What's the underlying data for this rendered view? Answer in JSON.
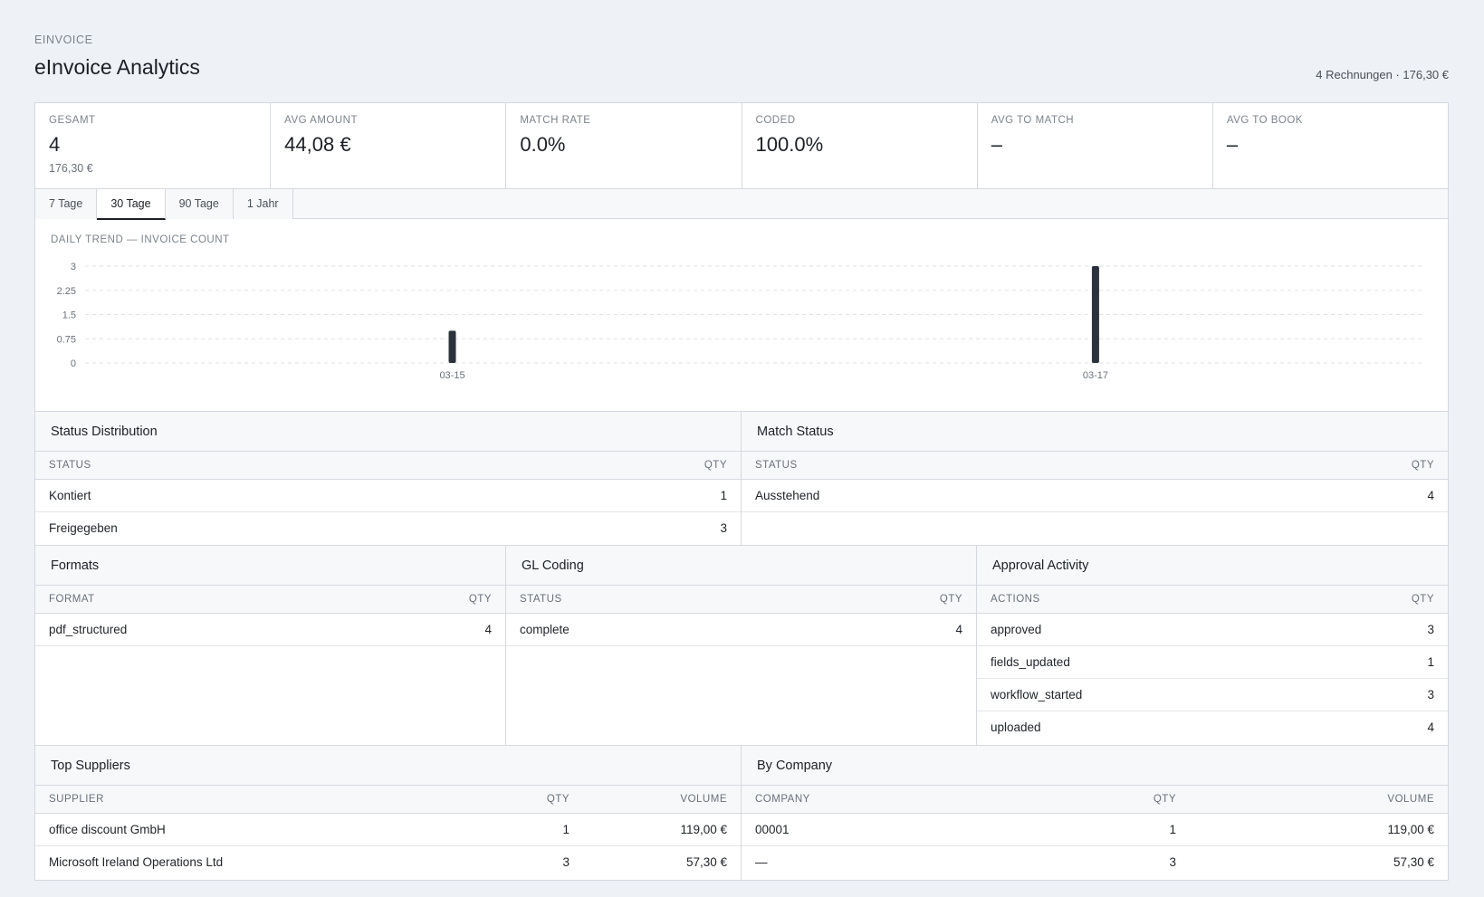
{
  "header": {
    "eyebrow": "EINVOICE",
    "title": "eInvoice Analytics",
    "summary": "4 Rechnungen · 176,30 €"
  },
  "kpis": [
    {
      "label": "GESAMT",
      "value": "4",
      "sub": "176,30 €"
    },
    {
      "label": "AVG AMOUNT",
      "value": "44,08 €",
      "sub": ""
    },
    {
      "label": "MATCH RATE",
      "value": "0.0%",
      "sub": ""
    },
    {
      "label": "CODED",
      "value": "100.0%",
      "sub": ""
    },
    {
      "label": "AVG TO MATCH",
      "value": "–",
      "sub": ""
    },
    {
      "label": "AVG TO BOOK",
      "value": "–",
      "sub": ""
    }
  ],
  "tabs": [
    "7 Tage",
    "30 Tage",
    "90 Tage",
    "1 Jahr"
  ],
  "active_tab": "30 Tage",
  "chart_data": {
    "type": "bar",
    "title": "DAILY TREND — INVOICE COUNT",
    "categories": [
      "03-15",
      "03-17"
    ],
    "values": [
      1,
      3
    ],
    "yticks": [
      "3",
      "2.25",
      "1.5",
      "0.75",
      "0"
    ],
    "ylim": [
      0,
      3
    ],
    "grid": true,
    "bar_color": "#2b323b"
  },
  "status_distribution": {
    "title": "Status Distribution",
    "columns": [
      "STATUS",
      "QTY"
    ],
    "rows": [
      [
        "Kontiert",
        "1"
      ],
      [
        "Freigegeben",
        "3"
      ]
    ]
  },
  "match_status": {
    "title": "Match Status",
    "columns": [
      "STATUS",
      "QTY"
    ],
    "rows": [
      [
        "Ausstehend",
        "4"
      ]
    ]
  },
  "formats": {
    "title": "Formats",
    "columns": [
      "FORMAT",
      "QTY"
    ],
    "rows": [
      [
        "pdf_structured",
        "4"
      ]
    ]
  },
  "gl_coding": {
    "title": "GL Coding",
    "columns": [
      "STATUS",
      "QTY"
    ],
    "rows": [
      [
        "complete",
        "4"
      ]
    ]
  },
  "approval_activity": {
    "title": "Approval Activity",
    "columns": [
      "ACTIONS",
      "QTY"
    ],
    "rows": [
      [
        "approved",
        "3"
      ],
      [
        "fields_updated",
        "1"
      ],
      [
        "workflow_started",
        "3"
      ],
      [
        "uploaded",
        "4"
      ]
    ]
  },
  "top_suppliers": {
    "title": "Top Suppliers",
    "columns": [
      "SUPPLIER",
      "QTY",
      "VOLUME"
    ],
    "rows": [
      [
        "office discount GmbH",
        "1",
        "119,00 €"
      ],
      [
        "Microsoft Ireland Operations Ltd",
        "3",
        "57,30 €"
      ]
    ]
  },
  "by_company": {
    "title": "By Company",
    "columns": [
      "COMPANY",
      "QTY",
      "VOLUME"
    ],
    "rows": [
      [
        "00001",
        "1",
        "119,00 €"
      ],
      [
        "—",
        "3",
        "57,30 €"
      ]
    ]
  }
}
